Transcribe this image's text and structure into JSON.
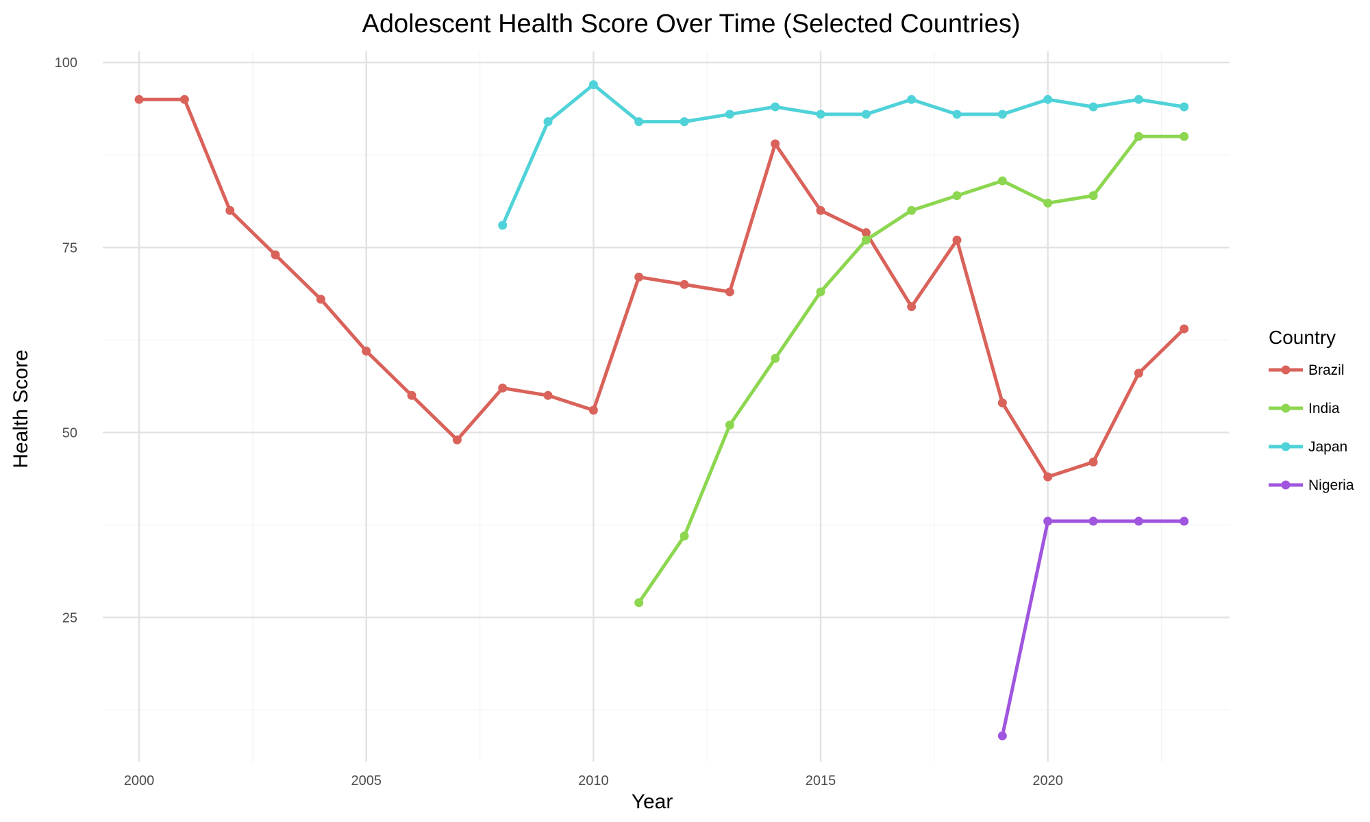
{
  "chart_data": {
    "type": "line",
    "title": "Adolescent Health Score Over Time (Selected Countries)",
    "xlabel": "Year",
    "ylabel": "Health Score",
    "xlim": [
      1999.2,
      2024.0
    ],
    "ylim": [
      5.5,
      101.5
    ],
    "x_ticks": [
      2000,
      2005,
      2010,
      2015,
      2020
    ],
    "x_minor_ticks": [
      2002.5,
      2007.5,
      2012.5,
      2017.5,
      2022.5
    ],
    "y_ticks": [
      25,
      50,
      75,
      100
    ],
    "y_minor_ticks": [
      12.5,
      37.5,
      62.5,
      87.5
    ],
    "grid": true,
    "legend": {
      "title": "Country",
      "placement": "right"
    },
    "series": [
      {
        "name": "Brazil",
        "color": "#D9625A",
        "points": [
          [
            2000,
            95
          ],
          [
            2001,
            95
          ],
          [
            2002,
            80
          ],
          [
            2003,
            74
          ],
          [
            2004,
            68
          ],
          [
            2005,
            61
          ],
          [
            2006,
            55
          ],
          [
            2007,
            49
          ],
          [
            2008,
            56
          ],
          [
            2009,
            55
          ],
          [
            2010,
            53
          ],
          [
            2011,
            71
          ],
          [
            2012,
            70
          ],
          [
            2013,
            69
          ],
          [
            2014,
            89
          ],
          [
            2015,
            80
          ],
          [
            2016,
            77
          ],
          [
            2017,
            67
          ],
          [
            2018,
            76
          ],
          [
            2019,
            54
          ],
          [
            2020,
            44
          ],
          [
            2021,
            46
          ],
          [
            2022,
            58
          ],
          [
            2023,
            64
          ]
        ]
      },
      {
        "name": "India",
        "color": "#8CD650",
        "points": [
          [
            2011,
            27
          ],
          [
            2012,
            36
          ],
          [
            2013,
            51
          ],
          [
            2014,
            60
          ],
          [
            2015,
            69
          ],
          [
            2016,
            76
          ],
          [
            2017,
            80
          ],
          [
            2018,
            82
          ],
          [
            2019,
            84
          ],
          [
            2020,
            81
          ],
          [
            2021,
            82
          ],
          [
            2022,
            90
          ],
          [
            2023,
            90
          ]
        ]
      },
      {
        "name": "Japan",
        "color": "#4FD2D8",
        "points": [
          [
            2008,
            78
          ],
          [
            2009,
            92
          ],
          [
            2010,
            97
          ],
          [
            2011,
            92
          ],
          [
            2012,
            92
          ],
          [
            2013,
            93
          ],
          [
            2014,
            94
          ],
          [
            2015,
            93
          ],
          [
            2016,
            93
          ],
          [
            2017,
            95
          ],
          [
            2018,
            93
          ],
          [
            2019,
            93
          ],
          [
            2020,
            95
          ],
          [
            2021,
            94
          ],
          [
            2022,
            95
          ],
          [
            2023,
            94
          ]
        ]
      },
      {
        "name": "Nigeria",
        "color": "#A055DE",
        "points": [
          [
            2019,
            9
          ],
          [
            2020,
            38
          ],
          [
            2021,
            38
          ],
          [
            2022,
            38
          ],
          [
            2023,
            38
          ]
        ]
      }
    ]
  }
}
